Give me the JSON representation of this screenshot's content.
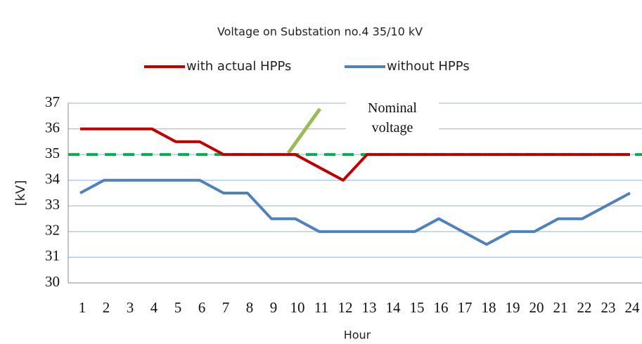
{
  "chart_data": {
    "type": "line",
    "title": "Voltage on Substation no.4 35/10 kV",
    "x_label": "Hour",
    "y_label": "[kV]",
    "categories": [
      "1",
      "2",
      "3",
      "4",
      "5",
      "6",
      "7",
      "8",
      "9",
      "10",
      "11",
      "12",
      "13",
      "14",
      "15",
      "16",
      "17",
      "18",
      "19",
      "20",
      "21",
      "22",
      "23",
      "24"
    ],
    "series": [
      {
        "name": "with actual HPPs",
        "color": "#c00000",
        "values": [
          36,
          36,
          36,
          36,
          35.5,
          35.5,
          35,
          35,
          35,
          35,
          34.5,
          34,
          35,
          35,
          35,
          35,
          35,
          35,
          35,
          35,
          35,
          35,
          35,
          35
        ]
      },
      {
        "name": "without HPPs",
        "color": "#4f81bd",
        "values": [
          33.5,
          34,
          34,
          34,
          34,
          34,
          33.5,
          33.5,
          32.5,
          32.5,
          32,
          32,
          32,
          32,
          32,
          32.5,
          32,
          31.5,
          32,
          32,
          32.5,
          32.5,
          33,
          33.5
        ]
      }
    ],
    "reference_line": {
      "value": 35,
      "color": "#00b050",
      "label": "Nominal voltage"
    },
    "ylim": [
      30,
      37
    ],
    "yticks": [
      30,
      31,
      32,
      33,
      34,
      35,
      36,
      37
    ],
    "grid": true,
    "legend": "top"
  }
}
